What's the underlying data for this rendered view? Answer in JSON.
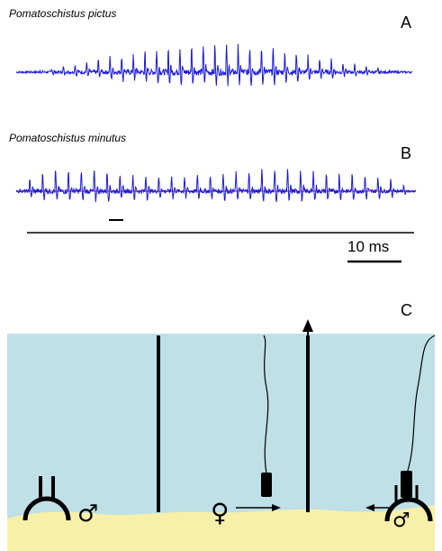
{
  "panel_a": {
    "letter": "A",
    "species": "Pomatoschistus pictus",
    "trace_color": "#1a1adb",
    "pulse_count": 34
  },
  "panel_b": {
    "letter": "B",
    "species": "Pomatoschistus minutus",
    "trace_color": "#1a1adb",
    "baseline_color": "#e0408a",
    "pulse_count": 31
  },
  "scale_bar": {
    "label": "10 ms"
  },
  "panel_c": {
    "letter": "C",
    "water_color": "#bfe0e6",
    "sand_color": "#f8f0a8",
    "male_symbol": "♂",
    "female_symbol": "♀"
  }
}
